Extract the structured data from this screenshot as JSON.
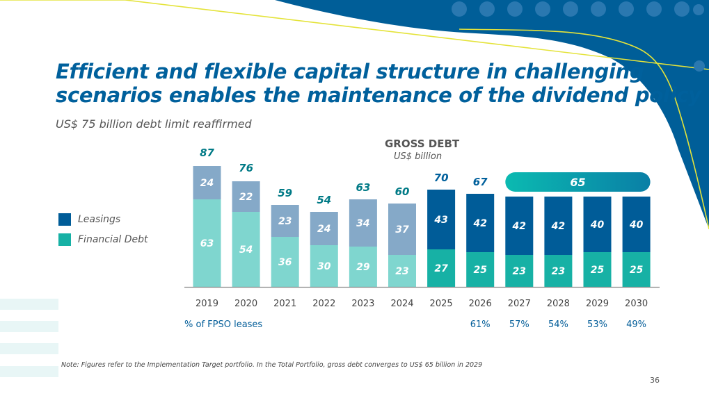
{
  "title_line1": "Efficient and flexible capital structure in challenging",
  "title_line2": "scenarios enables the maintenance of the dividend policy",
  "subtitle": "US$ 75 billion debt limit reaffirmed",
  "note": "Note: Figures refer to the Implementation Target portfolio. In the Total Portfolio, gross debt converges to US$ 65 billion in 2029",
  "page_number": "36",
  "colors": {
    "title": "#00609c",
    "leasing_past": "#85a9c8",
    "financial_past": "#7fd6cf",
    "leasing_future": "#005c98",
    "financial_future": "#17b1a5",
    "total_label_past": "#007a86",
    "total_label_future": "#00609c",
    "banner": "#0bbab1",
    "decor_blue": "#005e98",
    "decor_line": "#e4e33a"
  },
  "legend": [
    {
      "label": "Leasings",
      "color": "#005c98"
    },
    {
      "label": "Financial Debt",
      "color": "#17b1a5"
    }
  ],
  "chart_data": {
    "type": "bar",
    "stacked": true,
    "title": "GROSS DEBT",
    "unit": "US$ billion",
    "categories": [
      "2019",
      "2020",
      "2021",
      "2022",
      "2023",
      "2024",
      "2025",
      "2026",
      "2027",
      "2028",
      "2029",
      "2030"
    ],
    "series": [
      {
        "name": "Financial Debt",
        "values": [
          63,
          54,
          36,
          30,
          29,
          23,
          27,
          25,
          23,
          23,
          25,
          25
        ]
      },
      {
        "name": "Leasings",
        "values": [
          24,
          22,
          23,
          24,
          34,
          37,
          43,
          42,
          42,
          42,
          40,
          40
        ]
      }
    ],
    "totals": [
      "87",
      "76",
      "59",
      "54",
      "63",
      "60",
      "70",
      "67",
      "",
      "",
      "",
      ""
    ],
    "projection_start_index": 6,
    "banner": {
      "label": "65",
      "from_index": 8,
      "to_index": 11
    },
    "fpso_label": "% of FPSO leases",
    "fpso_values": [
      "",
      "",
      "",
      "",
      "",
      "",
      "",
      "61%",
      "57%",
      "54%",
      "53%",
      "49%"
    ],
    "ylim": [
      0,
      95
    ]
  }
}
